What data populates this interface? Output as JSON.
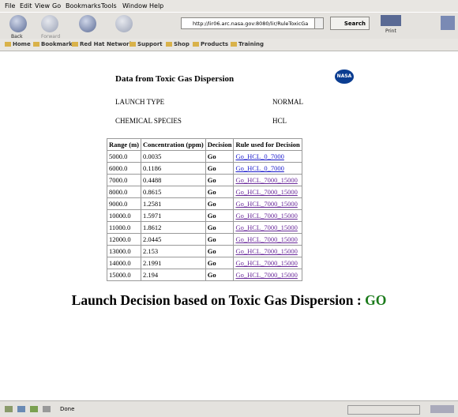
{
  "menu": [
    "File",
    "Edit",
    "View",
    "Go",
    "Bookmarks",
    "Tools",
    "Window",
    "Help"
  ],
  "toolbar": {
    "back": "Back",
    "forward": "Forward",
    "url": "http://lir06.arc.nasa.gov:8080/lir/RuleToxicGa",
    "search": "Search",
    "print": "Print"
  },
  "bookmarks": [
    "Home",
    "Bookmarks",
    "Red Hat Network",
    "Support",
    "Shop",
    "Products",
    "Training"
  ],
  "page": {
    "title": "Data from Toxic Gas Dispersion",
    "logo": "NASA",
    "info": [
      [
        "LAUNCH TYPE",
        "NORMAL"
      ],
      [
        "CHEMICAL SPECIES",
        "HCL"
      ]
    ],
    "table": {
      "header": [
        "Range (m)",
        "Concentration (ppm)",
        "Decision",
        "Rule used for Decision"
      ],
      "rows": [
        [
          "5000.0",
          "0.0035",
          "Go",
          "Go_HCL_0_7000"
        ],
        [
          "6000.0",
          "0.1186",
          "Go",
          "Go_HCL_0_7000"
        ],
        [
          "7000.0",
          "0.4488",
          "Go",
          "Go_HCL_7000_15000"
        ],
        [
          "8000.0",
          "0.8615",
          "Go",
          "Go_HCL_7000_15000"
        ],
        [
          "9000.0",
          "1.2581",
          "Go",
          "Go_HCL_7000_15000"
        ],
        [
          "10000.0",
          "1.5971",
          "Go",
          "Go_HCL_7000_15000"
        ],
        [
          "11000.0",
          "1.8612",
          "Go",
          "Go_HCL_7000_15000"
        ],
        [
          "12000.0",
          "2.0445",
          "Go",
          "Go_HCL_7000_15000"
        ],
        [
          "13000.0",
          "2.153",
          "Go",
          "Go_HCL_7000_15000"
        ],
        [
          "14000.0",
          "2.1991",
          "Go",
          "Go_HCL_7000_15000"
        ],
        [
          "15000.0",
          "2.194",
          "Go",
          "Go_HCL_7000_15000"
        ]
      ]
    },
    "decision": {
      "text": "Launch Decision based on Toxic Gas Dispersion :",
      "result": "GO"
    }
  },
  "status": "Done"
}
